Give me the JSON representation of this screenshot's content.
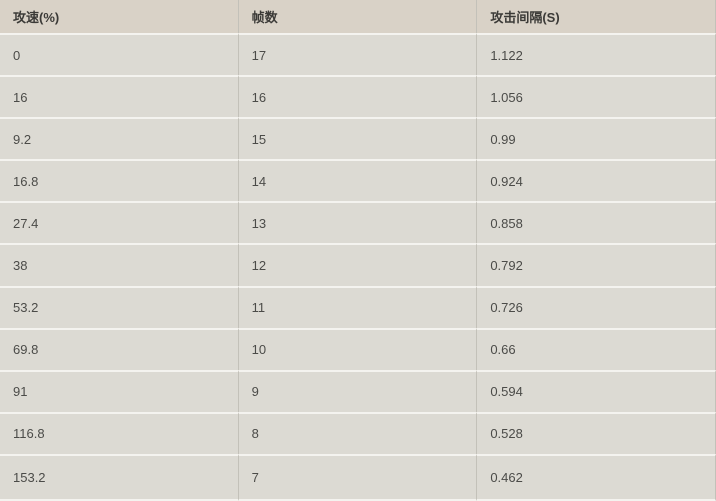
{
  "table": {
    "columns": [
      {
        "label": "攻速(%)"
      },
      {
        "label": "帧数"
      },
      {
        "label": "攻击间隔(S)"
      }
    ],
    "rows": [
      {
        "attack_speed": "0",
        "frames": "17",
        "interval": "1.122"
      },
      {
        "attack_speed": "16",
        "frames": "16",
        "interval": "1.056"
      },
      {
        "attack_speed": "9.2",
        "frames": "15",
        "interval": "0.99"
      },
      {
        "attack_speed": "16.8",
        "frames": "14",
        "interval": "0.924"
      },
      {
        "attack_speed": "27.4",
        "frames": "13",
        "interval": "0.858"
      },
      {
        "attack_speed": "38",
        "frames": "12",
        "interval": "0.792"
      },
      {
        "attack_speed": "53.2",
        "frames": "11",
        "interval": "0.726"
      },
      {
        "attack_speed": "69.8",
        "frames": "10",
        "interval": "0.66"
      },
      {
        "attack_speed": "91",
        "frames": "9",
        "interval": "0.594"
      },
      {
        "attack_speed": "116.8",
        "frames": "8",
        "interval": "0.528"
      },
      {
        "attack_speed": "153.2",
        "frames": "7",
        "interval": "0.462"
      }
    ]
  },
  "colors": {
    "header_background": "#d9d2c7",
    "row_background": "#dcdad3",
    "horizontal_separator": "#f4f3ef",
    "vertical_separator": "#c3c1b9",
    "header_text": "#3b3a37",
    "cell_text": "#4b4b48"
  }
}
